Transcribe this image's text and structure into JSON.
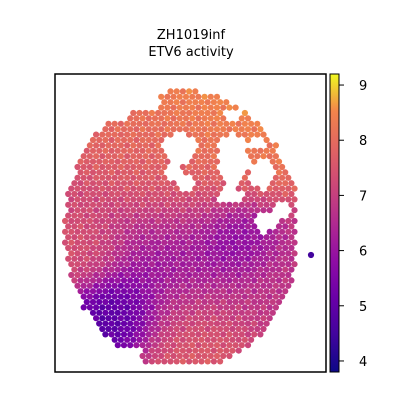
{
  "chart_data": {
    "type": "heatmap",
    "title": "ZH1019inf",
    "subtitle": "ETV6 activity",
    "colormap": "plasma",
    "color_range": [
      3.8,
      9.2
    ],
    "colorbar": {
      "ticks": [
        4,
        5,
        6,
        7,
        8,
        9
      ],
      "tick_labels": [
        "4",
        "5",
        "6",
        "7",
        "8",
        "9"
      ]
    },
    "axes_frame": true,
    "axis_ticks": false,
    "grid": false,
    "region_values": [
      {
        "region": "upper-right lobe",
        "value": 8.5
      },
      {
        "region": "upper-left",
        "value": 7.8
      },
      {
        "region": "left edge",
        "value": 7.6
      },
      {
        "region": "center",
        "value": 5.9
      },
      {
        "region": "central dark patch",
        "value": 5.2
      },
      {
        "region": "right side",
        "value": 6.9
      },
      {
        "region": "lower-left corner",
        "value": 4.6
      },
      {
        "region": "bottom edge",
        "value": 7.9
      },
      {
        "region": "isolated spot right",
        "value": 4.5
      }
    ]
  }
}
